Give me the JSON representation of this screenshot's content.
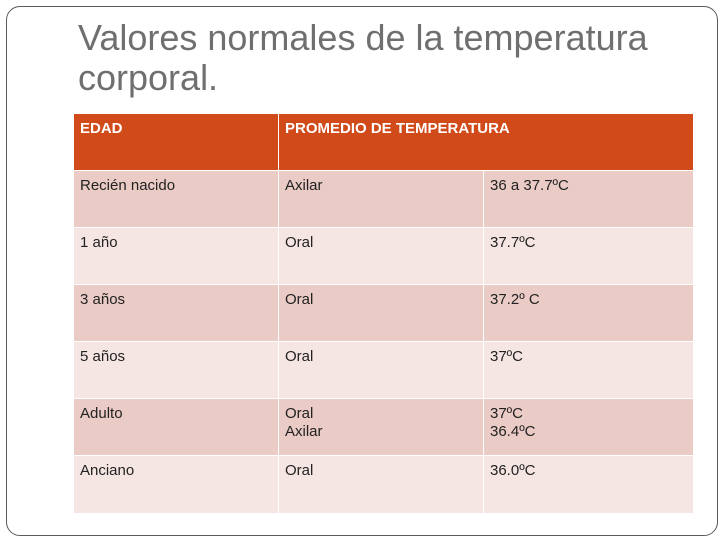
{
  "title_line1": "Valores normales de la temperatura",
  "title_line2": "corporal.",
  "table": {
    "headers": [
      "EDAD",
      "PROMEDIO DE TEMPERATURA",
      ""
    ],
    "rows": [
      {
        "edad": "Recién nacido",
        "via": [
          "Axilar"
        ],
        "temp": [
          "36 a 37.7ºC"
        ]
      },
      {
        "edad": "1 año",
        "via": [
          "Oral"
        ],
        "temp": [
          "37.7ºC"
        ]
      },
      {
        "edad": "3 años",
        "via": [
          "Oral"
        ],
        "temp": [
          "37.2º C"
        ]
      },
      {
        "edad": "5 años",
        "via": [
          "Oral"
        ],
        "temp": [
          "37ºC"
        ]
      },
      {
        "edad": "Adulto",
        "via": [
          "Oral",
          "Axilar"
        ],
        "temp": [
          "37ºC",
          "36.4ºC"
        ]
      },
      {
        "edad": "Anciano",
        "via": [
          "Oral"
        ],
        "temp": [
          "36.0ºC"
        ]
      }
    ]
  },
  "colors": {
    "header_bg": "#d04a1a",
    "row_odd_bg": "#ebcbc6",
    "row_even_bg": "#f6e6e3",
    "title_color": "#6f6f6f"
  }
}
